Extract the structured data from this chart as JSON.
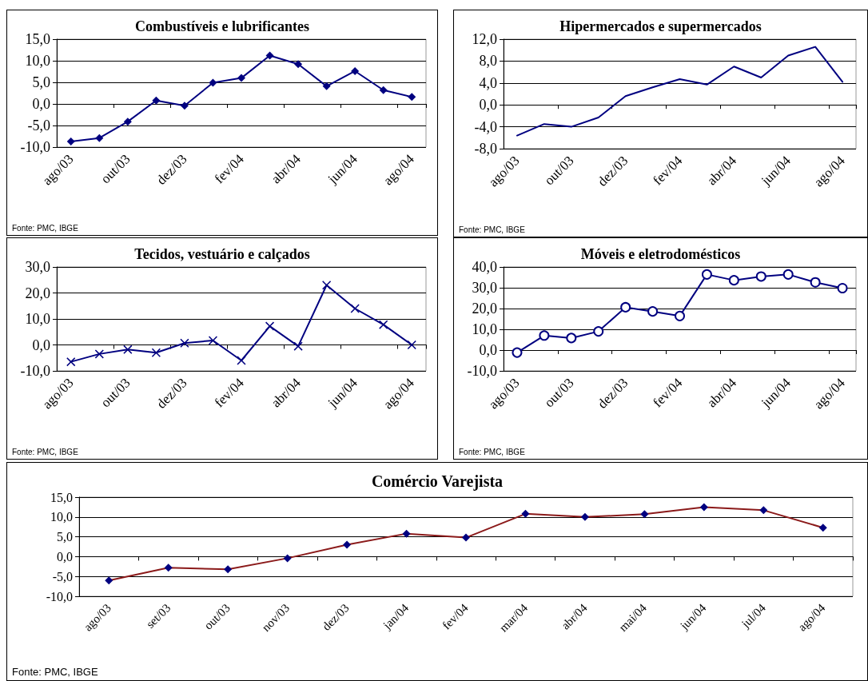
{
  "chart_data": [
    {
      "type": "line",
      "title": "Combustíveis e lubrificantes",
      "categories": [
        "ago/03",
        null,
        "out/03",
        null,
        "dez/03",
        null,
        "fev/04",
        null,
        "abr/04",
        null,
        "jun/04",
        null,
        "ago/04"
      ],
      "series": [
        {
          "color": "#000080",
          "values": [
            -8.7,
            -7.9,
            -4.1,
            0.8,
            -0.4,
            4.9,
            6.0,
            11.2,
            9.2,
            4.1,
            7.6,
            3.2,
            1.6
          ]
        }
      ],
      "ylim": [
        -10,
        15
      ],
      "yticks": [
        {
          "value": -10,
          "label": "-10,0"
        },
        {
          "value": -5,
          "label": "-5,0"
        },
        {
          "value": 0,
          "label": "0,0"
        },
        {
          "value": 5,
          "label": "5,0"
        },
        {
          "value": 10,
          "label": "10,0"
        },
        {
          "value": 15,
          "label": "15,0"
        }
      ],
      "grid": "y",
      "marker": "diamond",
      "annotations": [
        "Fonte: PMC, IBGE"
      ]
    },
    {
      "type": "line",
      "title": "Hipermercados e supermercados",
      "categories": [
        "ago/03",
        null,
        "out/03",
        null,
        "dez/03",
        null,
        "fev/04",
        null,
        "abr/04",
        null,
        "jun/04",
        null,
        "ago/04"
      ],
      "series": [
        {
          "color": "#000080",
          "values": [
            -5.6,
            -3.5,
            -4.0,
            -2.3,
            1.6,
            3.2,
            4.7,
            3.7,
            7.0,
            5.0,
            9.0,
            10.6,
            4.2
          ]
        }
      ],
      "ylim": [
        -8,
        12
      ],
      "yticks": [
        {
          "value": -8,
          "label": "-8,0"
        },
        {
          "value": -4,
          "label": "-4,0"
        },
        {
          "value": 0,
          "label": "0,0"
        },
        {
          "value": 4,
          "label": "4,0"
        },
        {
          "value": 8,
          "label": "8,0"
        },
        {
          "value": 12,
          "label": "12,0"
        }
      ],
      "grid": "y",
      "marker": "none",
      "annotations": [
        "Fonte: PMC, IBGE"
      ]
    },
    {
      "type": "line",
      "title": "Tecidos, vestuário e calçados",
      "categories": [
        "ago/03",
        null,
        "out/03",
        null,
        "dez/03",
        null,
        "fev/04",
        null,
        "abr/04",
        null,
        "jun/04",
        null,
        "ago/04"
      ],
      "series": [
        {
          "color": "#000080",
          "values": [
            -6.5,
            -3.5,
            -1.8,
            -3.0,
            0.7,
            1.7,
            -6.0,
            7.2,
            -0.5,
            23.0,
            14.0,
            7.8,
            0.0
          ]
        }
      ],
      "ylim": [
        -10,
        30
      ],
      "yticks": [
        {
          "value": -10,
          "label": "-10,0"
        },
        {
          "value": 0,
          "label": "0,0"
        },
        {
          "value": 10,
          "label": "10,0"
        },
        {
          "value": 20,
          "label": "20,0"
        },
        {
          "value": 30,
          "label": "30,0"
        }
      ],
      "grid": "y",
      "marker": "cross",
      "annotations": [
        "Fonte: PMC, IBGE"
      ]
    },
    {
      "type": "line",
      "title": "Móveis e eletrodomésticos",
      "categories": [
        "ago/03",
        null,
        "out/03",
        null,
        "dez/03",
        null,
        "fev/04",
        null,
        "abr/04",
        null,
        "jun/04",
        null,
        "ago/04"
      ],
      "series": [
        {
          "color": "#000080",
          "values": [
            -1.2,
            7.0,
            5.8,
            9.0,
            20.6,
            18.6,
            16.4,
            36.4,
            33.6,
            35.4,
            36.4,
            32.6,
            29.8
          ]
        }
      ],
      "ylim": [
        -10,
        40
      ],
      "yticks": [
        {
          "value": -10,
          "label": "-10,0"
        },
        {
          "value": 0,
          "label": "0,0"
        },
        {
          "value": 10,
          "label": "10,0"
        },
        {
          "value": 20,
          "label": "20,0"
        },
        {
          "value": 30,
          "label": "30,0"
        },
        {
          "value": 40,
          "label": "40,0"
        }
      ],
      "grid": "y",
      "marker": "circle",
      "annotations": [
        "Fonte: PMC, IBGE"
      ]
    },
    {
      "type": "line",
      "title": "Comércio Varejista",
      "categories": [
        "ago/03",
        "set/03",
        "out/03",
        "nov/03",
        "dez/03",
        "jan/04",
        "fev/04",
        "mar/04",
        "abr/04",
        "mai/04",
        "jun/04",
        "jul/04",
        "ago/04"
      ],
      "series": [
        {
          "color": "#8b1a1a",
          "colors": [
            "#000080",
            "#000080",
            "#000080",
            "#000080",
            "#000080",
            "#000080",
            "#000080",
            "#000080",
            "#000080",
            "#000080",
            "#000080",
            "#000080",
            "#000080"
          ],
          "values": [
            -6.0,
            -2.8,
            -3.2,
            -0.4,
            3.0,
            5.8,
            4.8,
            10.8,
            10.0,
            10.7,
            12.5,
            11.7,
            7.3
          ]
        }
      ],
      "ylim": [
        -10,
        15
      ],
      "yticks": [
        {
          "value": -10,
          "label": "-10,0"
        },
        {
          "value": -5,
          "label": "-5,0"
        },
        {
          "value": 0,
          "label": "0,0"
        },
        {
          "value": 5,
          "label": "5,0"
        },
        {
          "value": 10,
          "label": "10,0"
        },
        {
          "value": 15,
          "label": "15,0"
        }
      ],
      "grid": "y",
      "marker": "diamond",
      "annotations": [
        "Fonte: PMC, IBGE"
      ]
    }
  ]
}
